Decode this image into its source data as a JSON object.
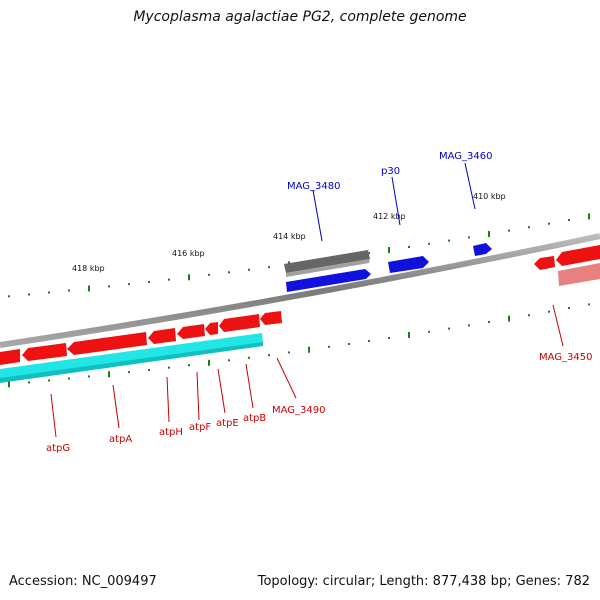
{
  "title": "Mycoplasma agalactiae PG2, complete genome",
  "footer": {
    "accession": "Accession: NC_009497",
    "summary": "Topology: circular; Length: 877,438 bp; Genes: 782"
  },
  "colors": {
    "background": "#ffffff",
    "backbone": "#8c8c8c",
    "tick": "#1a7f1a",
    "gene_red": "#ee1111",
    "gene_pink": "#e88080",
    "gene_blue": "#1111dd",
    "gene_gray": "#666666",
    "gene_cyan": "#22e5e5",
    "label_red": "#cc0000",
    "label_blue": "#0000cc"
  },
  "tick_labels": [
    "418 kbp",
    "416 kbp",
    "414 kbp",
    "412 kbp",
    "410 kbp"
  ],
  "gene_labels_forward": [
    "MAG_3480",
    "p30",
    "MAG_3460"
  ],
  "gene_labels_reverse": [
    "atpG",
    "atpA",
    "atpH",
    "atpF",
    "atpE",
    "atpB",
    "MAG_3490",
    "MAG_3450"
  ]
}
